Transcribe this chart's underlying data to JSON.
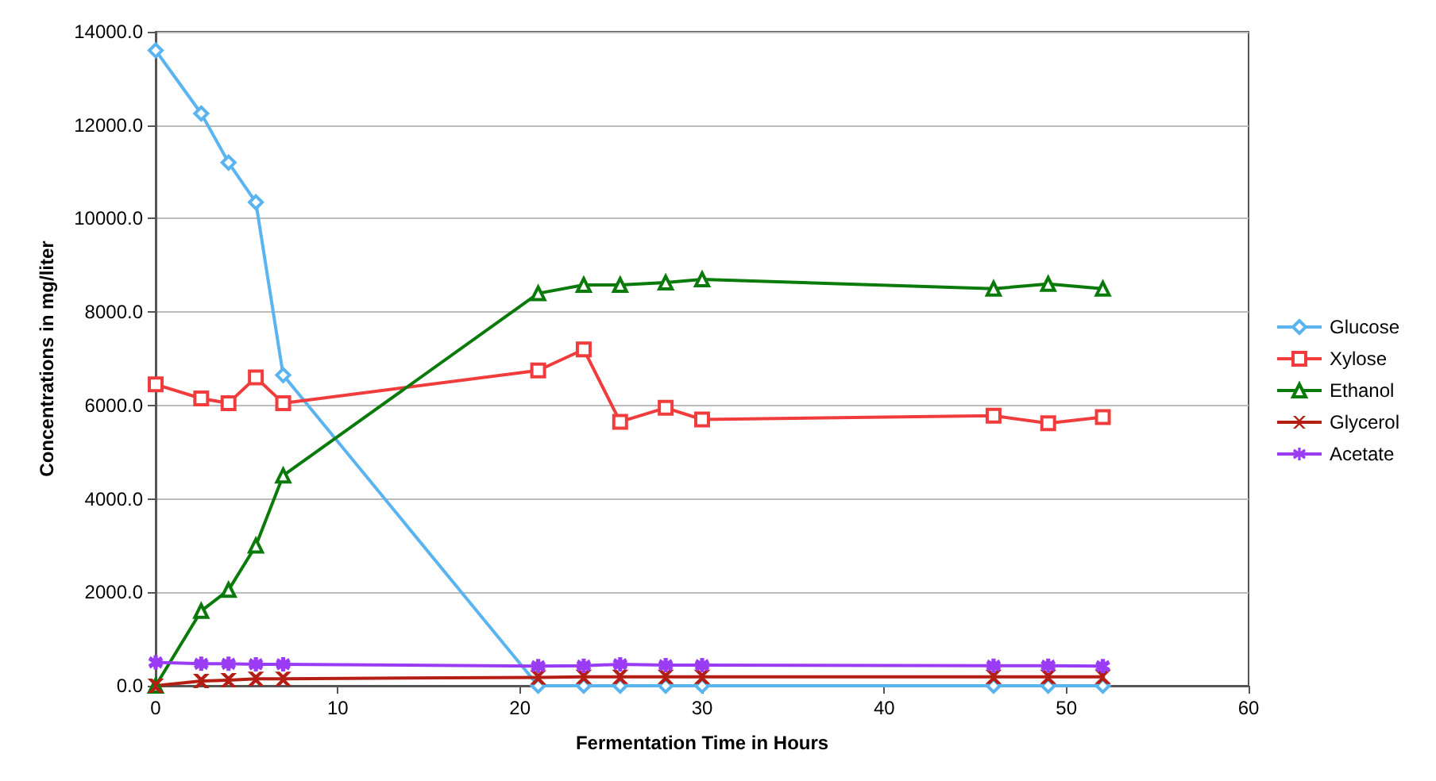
{
  "chart_data": {
    "type": "line",
    "xlabel": "Fermentation Time in Hours",
    "ylabel": "Concentrations in mg/liter",
    "x": [
      0,
      2.5,
      4,
      5.5,
      7,
      21,
      23.5,
      25.5,
      28,
      30,
      46,
      49,
      52
    ],
    "series": [
      {
        "name": "Glucose",
        "color": "#5ab4f0",
        "marker": "diamond",
        "values": [
          13600,
          12250,
          11200,
          10350,
          6650,
          0,
          0,
          0,
          0,
          0,
          0,
          0,
          0
        ]
      },
      {
        "name": "Xylose",
        "color": "#f03c3c",
        "marker": "square",
        "values": [
          6450,
          6150,
          6050,
          6600,
          6050,
          6750,
          7200,
          5650,
          5950,
          5700,
          5780,
          5620,
          5750
        ]
      },
      {
        "name": "Ethanol",
        "color": "#0a7a0a",
        "marker": "triangle",
        "values": [
          0,
          1600,
          2050,
          3000,
          4500,
          8400,
          8580,
          8580,
          8630,
          8700,
          8500,
          8600,
          8500
        ]
      },
      {
        "name": "Glycerol",
        "color": "#b41e14",
        "marker": "cross",
        "values": [
          0,
          100,
          120,
          150,
          150,
          180,
          190,
          190,
          190,
          190,
          190,
          190,
          190
        ]
      },
      {
        "name": "Acetate",
        "color": "#9b3cf5",
        "marker": "star",
        "values": [
          500,
          470,
          470,
          460,
          460,
          420,
          430,
          460,
          440,
          440,
          430,
          430,
          420
        ]
      }
    ],
    "xlim": [
      0,
      60
    ],
    "xticks": [
      0,
      10,
      20,
      30,
      40,
      50,
      60
    ],
    "ylim": [
      0,
      14000
    ],
    "yticks": [
      {
        "value": 0,
        "label": "0.0"
      },
      {
        "value": 2000,
        "label": "2000.0"
      },
      {
        "value": 4000,
        "label": "4000.0"
      },
      {
        "value": 6000,
        "label": "6000.0"
      },
      {
        "value": 8000,
        "label": "8000.0"
      },
      {
        "value": 10000,
        "label": "10000.0"
      },
      {
        "value": 12000,
        "label": "12000.0"
      },
      {
        "value": 14000,
        "label": "14000.0"
      }
    ],
    "grid": "y",
    "legend": "right",
    "line_style": "solid"
  }
}
